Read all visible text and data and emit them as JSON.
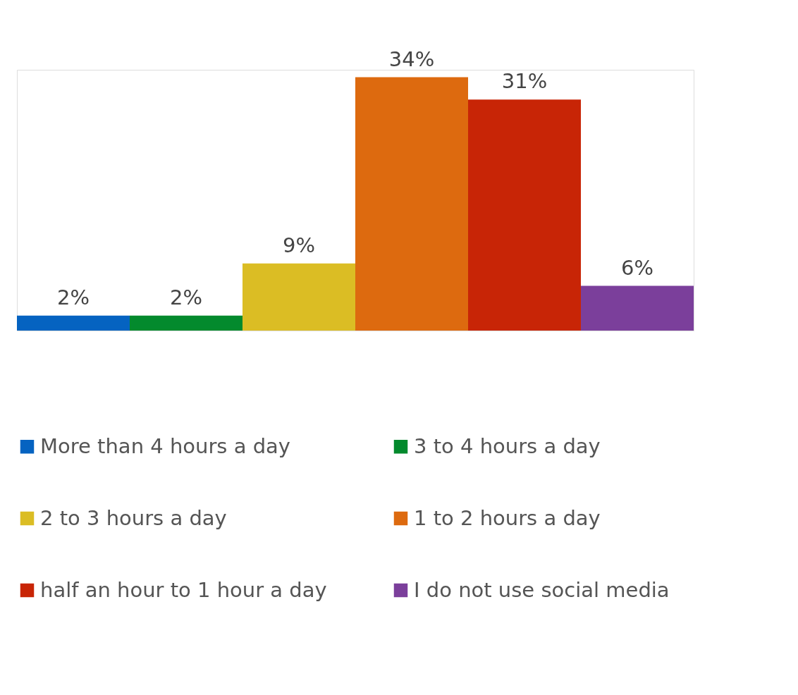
{
  "chart_data": {
    "type": "bar",
    "categories": [
      null
    ],
    "legend": "bottom",
    "grid": false,
    "series": [
      {
        "name": "More than 4 hours a day",
        "color": "#0563c1",
        "values": [
          2
        ],
        "value_labels": [
          "2%"
        ]
      },
      {
        "name": "3 to 4 hours a day",
        "color": "#038a2d",
        "values": [
          2
        ],
        "value_labels": [
          "2%"
        ]
      },
      {
        "name": "2 to 3 hours a day",
        "color": "#dbbd24",
        "values": [
          9
        ],
        "value_labels": [
          "9%"
        ]
      },
      {
        "name": "1 to 2 hours a day",
        "color": "#dd6a0f",
        "values": [
          34
        ],
        "value_labels": [
          "34%"
        ]
      },
      {
        "name": "half an hour to 1 hour a day",
        "color": "#c82506",
        "values": [
          31
        ],
        "value_labels": [
          "31%"
        ]
      },
      {
        "name": "I do not use social media",
        "color": "#7b3f9b",
        "values": [
          6
        ],
        "value_labels": [
          "6%"
        ]
      }
    ]
  }
}
